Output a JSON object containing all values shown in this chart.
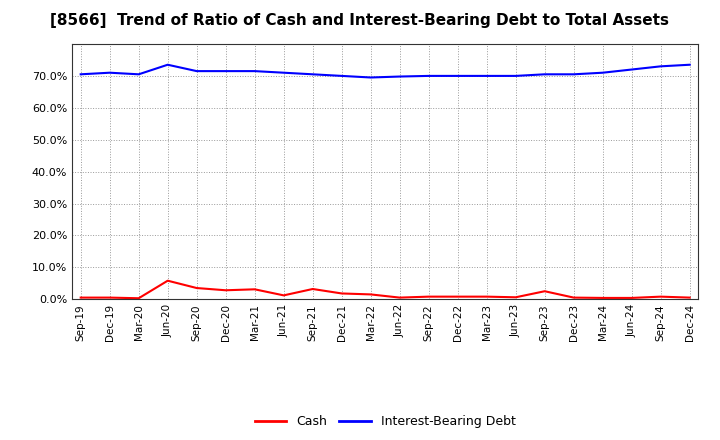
{
  "title": "[8566]  Trend of Ratio of Cash and Interest-Bearing Debt to Total Assets",
  "x_labels": [
    "Sep-19",
    "Dec-19",
    "Mar-20",
    "Jun-20",
    "Sep-20",
    "Dec-20",
    "Mar-21",
    "Jun-21",
    "Sep-21",
    "Dec-21",
    "Mar-22",
    "Jun-22",
    "Sep-22",
    "Dec-22",
    "Mar-23",
    "Jun-23",
    "Sep-23",
    "Dec-23",
    "Mar-24",
    "Jun-24",
    "Sep-24",
    "Dec-24"
  ],
  "cash": [
    0.5,
    0.5,
    0.3,
    5.8,
    3.5,
    2.8,
    3.1,
    1.2,
    3.2,
    1.8,
    1.5,
    0.5,
    0.8,
    0.8,
    0.8,
    0.6,
    2.5,
    0.5,
    0.4,
    0.4,
    0.8,
    0.5
  ],
  "interest_bearing_debt": [
    70.5,
    71.0,
    70.5,
    73.5,
    71.5,
    71.5,
    71.5,
    71.0,
    70.5,
    70.0,
    69.5,
    69.8,
    70.0,
    70.0,
    70.0,
    70.0,
    70.5,
    70.5,
    71.0,
    72.0,
    73.0,
    73.5
  ],
  "cash_color": "#FF0000",
  "ibd_color": "#0000FF",
  "background_color": "#FFFFFF",
  "grid_color": "#AAAAAA",
  "ylim": [
    0,
    80
  ],
  "yticks": [
    0,
    10,
    20,
    30,
    40,
    50,
    60,
    70
  ],
  "legend_labels": [
    "Cash",
    "Interest-Bearing Debt"
  ],
  "title_fontsize": 11
}
